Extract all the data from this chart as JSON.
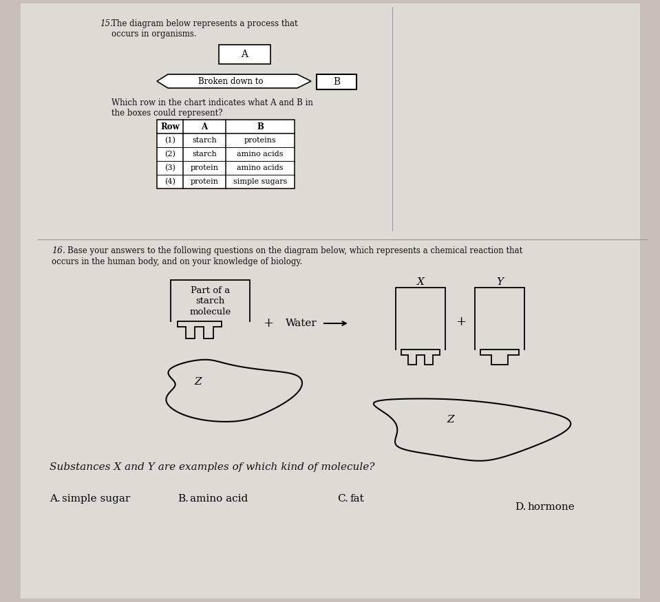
{
  "bg_color": "#c8c0b8",
  "paper_color": "#dedad4",
  "q15_number": "15.",
  "q15_line1": "The diagram below represents a process that",
  "q15_line2": "occurs in organisms.",
  "box_A_label": "A",
  "arrow_label": "Broken down to",
  "box_B_label": "B",
  "q15_q_line1": "Which row in the chart indicates what A and B in",
  "q15_q_line2": "the boxes could represent?",
  "table_headers": [
    "Row",
    "A",
    "B"
  ],
  "table_rows": [
    [
      "(1)",
      "starch",
      "proteins"
    ],
    [
      "(2)",
      "starch",
      "amino acids"
    ],
    [
      "(3)",
      "protein",
      "amino acids"
    ],
    [
      "(4)",
      "protein",
      "simple sugars"
    ]
  ],
  "q16_number": "16.",
  "q16_line1": "Base your answers to the following questions on the diagram below, which represents a chemical reaction that",
  "q16_line2": "occurs in the human body, and on your knowledge of biology.",
  "left_box_lines": [
    "Part of a",
    "starch",
    "molecule"
  ],
  "plus1": "+",
  "water_label": "Water",
  "X_label": "X",
  "Y_label": "Y",
  "plus2": "+",
  "Z_label": "Z",
  "q16_question": "Substances X and Y are examples of which kind of molecule?",
  "ans_A": "A.",
  "ans_A_text": "simple sugar",
  "ans_B": "B.",
  "ans_B_text": "amino acid",
  "ans_C": "C.",
  "ans_C_text": "fat",
  "ans_D": "D.",
  "ans_D_text": "hormone"
}
